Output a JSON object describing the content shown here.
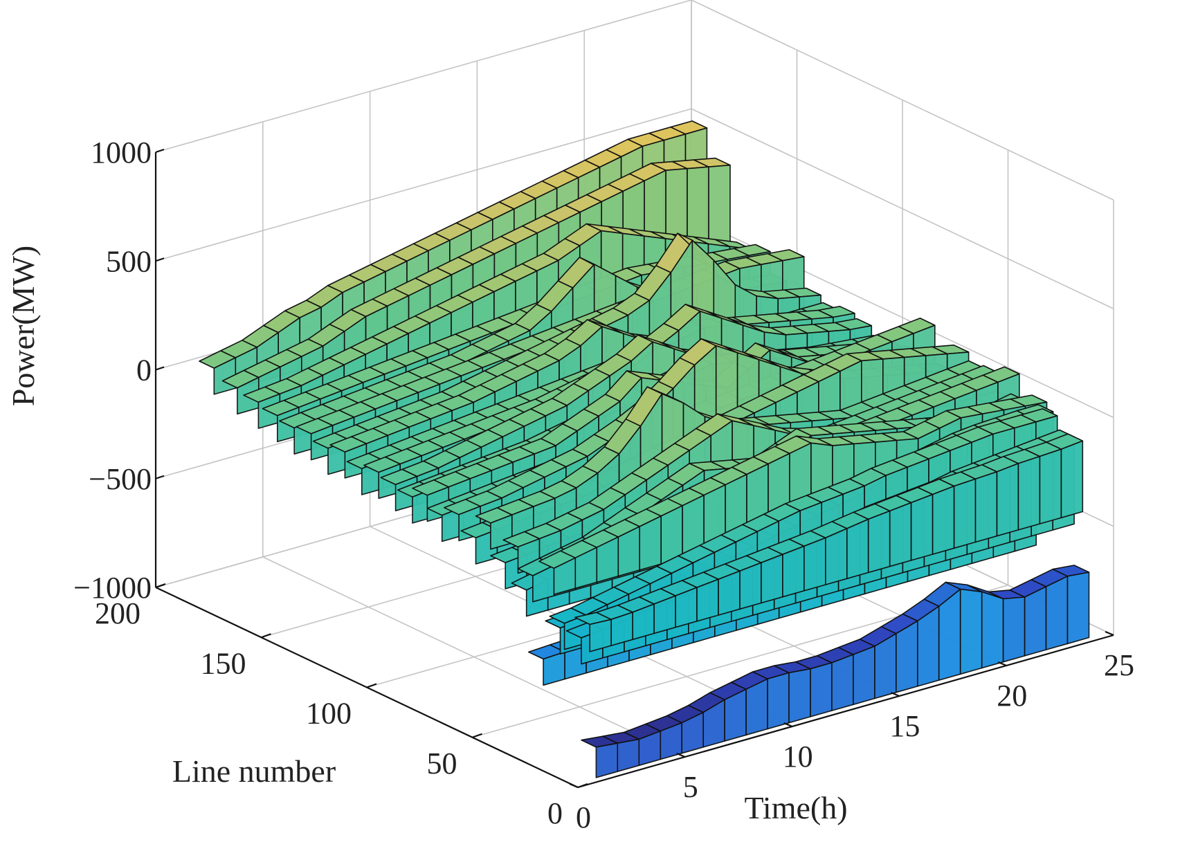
{
  "chart_data": {
    "type": "surface3d",
    "title": "",
    "xlabel": "Time(h)",
    "ylabel": "Line number",
    "zlabel": "Power(MW)",
    "x_ticks": [
      "0",
      "5",
      "10",
      "15",
      "20",
      "25"
    ],
    "y_ticks": [
      "0",
      "50",
      "100",
      "150",
      "200"
    ],
    "z_ticks": [
      "−1000",
      "−500",
      "0",
      "500",
      "1000"
    ],
    "xlim": [
      0,
      25
    ],
    "ylim": [
      0,
      200
    ],
    "zlim": [
      -1000,
      1000
    ],
    "grid": true,
    "colormap": [
      "#2b2c86",
      "#2f48c4",
      "#1f8fe3",
      "#16b6c8",
      "#3ec2a6",
      "#6cc78a",
      "#9cc774",
      "#c9c46b",
      "#e2c45a"
    ],
    "time_hours": [
      1,
      2,
      3,
      4,
      5,
      6,
      7,
      8,
      9,
      10,
      11,
      12,
      13,
      14,
      15,
      16,
      17,
      18,
      19,
      20,
      21,
      22,
      23,
      24
    ],
    "lines": [
      {
        "line": 5,
        "power_mw": [
          -850,
          -860,
          -870,
          -860,
          -850,
          -830,
          -800,
          -780,
          -760,
          -760,
          -770,
          -770,
          -760,
          -750,
          -720,
          -690,
          -650,
          -600,
          -640,
          -700,
          -720,
          -700,
          -680,
          -690
        ]
      },
      {
        "line": 8,
        "power_mw": [
          -300,
          -305,
          -300,
          -290,
          -280,
          -270,
          -260,
          -250,
          -240,
          -230,
          -220,
          -210,
          -195,
          -180,
          -170,
          -160,
          -150,
          -140,
          -135,
          -130,
          -120,
          -115,
          -110,
          -100
        ]
      },
      {
        "line": 12,
        "power_mw": [
          -380,
          -370,
          -360,
          -340,
          -330,
          -320,
          -300,
          -290,
          -280,
          -270,
          -260,
          -250,
          -240,
          -220,
          -200,
          -190,
          -180,
          -170,
          -150,
          -140,
          -130,
          -120,
          -110,
          -100
        ]
      },
      {
        "line": 20,
        "power_mw": [
          -350,
          -340,
          -320,
          -300,
          -280,
          -260,
          -240,
          -220,
          -200,
          -180,
          -160,
          -140,
          -130,
          -120,
          -110,
          -90,
          -80,
          -70,
          -60,
          -50,
          -40,
          -40,
          -40,
          -40
        ]
      },
      {
        "line": 22,
        "power_mw": [
          -380,
          -375,
          -370,
          -360,
          -350,
          -340,
          -320,
          -300,
          -280,
          -260,
          -240,
          -220,
          -200,
          -180,
          -160,
          -130,
          -110,
          -90,
          -70,
          -50,
          -40,
          -35,
          -30,
          -30
        ]
      },
      {
        "line": 25,
        "power_mw": [
          -120,
          -100,
          -80,
          -60,
          -40,
          -20,
          0,
          20,
          40,
          60,
          80,
          100,
          120,
          80,
          60,
          40,
          20,
          0,
          20,
          40,
          30,
          20,
          10,
          0
        ]
      },
      {
        "line": 30,
        "power_mw": [
          -560,
          -555,
          -550,
          -540,
          -520,
          -500,
          -480,
          -460,
          -440,
          -420,
          -400,
          -380,
          -360,
          -340,
          -320,
          -300,
          -280,
          -260,
          -240,
          -220,
          -200,
          -180,
          -160,
          -140
        ]
      },
      {
        "line": 35,
        "power_mw": [
          -200,
          -180,
          -160,
          -140,
          -100,
          -60,
          -20,
          20,
          60,
          40,
          20,
          0,
          40,
          80,
          60,
          40,
          20,
          0,
          -20,
          -40,
          -60,
          -80,
          -60,
          -40
        ]
      },
      {
        "line": 38,
        "power_mw": [
          -280,
          -260,
          -240,
          -220,
          -200,
          -180,
          -160,
          -140,
          -120,
          -100,
          -80,
          -60,
          -40,
          -30,
          -20,
          -10,
          0,
          10,
          20,
          30,
          40,
          50,
          60,
          70
        ]
      },
      {
        "line": 42,
        "power_mw": [
          -100,
          -90,
          -80,
          -60,
          -40,
          0,
          40,
          80,
          120,
          160,
          200,
          150,
          100,
          50,
          20,
          0,
          -20,
          -40,
          -60,
          -60,
          -60,
          -60,
          -60,
          -60
        ]
      },
      {
        "line": 48,
        "power_mw": [
          -200,
          -190,
          -180,
          -170,
          -160,
          -150,
          -140,
          -130,
          -120,
          -110,
          -100,
          -90,
          -80,
          -70,
          -60,
          -50,
          -40,
          -30,
          -20,
          -10,
          0,
          10,
          20,
          30
        ]
      },
      {
        "line": 55,
        "power_mw": [
          -50,
          -40,
          -30,
          -20,
          0,
          40,
          100,
          200,
          320,
          250,
          160,
          100,
          60,
          40,
          20,
          0,
          -20,
          -40,
          -30,
          -20,
          -10,
          0,
          10,
          20
        ]
      },
      {
        "line": 62,
        "power_mw": [
          -150,
          -140,
          -130,
          -120,
          -110,
          -100,
          -80,
          -60,
          -40,
          -20,
          0,
          20,
          40,
          60,
          80,
          100,
          120,
          140,
          160,
          140,
          120,
          100,
          80,
          60
        ]
      },
      {
        "line": 70,
        "power_mw": [
          -80,
          -70,
          -60,
          -40,
          -20,
          0,
          20,
          60,
          100,
          150,
          220,
          300,
          360,
          300,
          240,
          180,
          120,
          80,
          40,
          20,
          0,
          -20,
          -40,
          -60
        ]
      },
      {
        "line": 78,
        "power_mw": [
          -120,
          -110,
          -100,
          -90,
          -80,
          -70,
          -60,
          -50,
          -40,
          -30,
          -20,
          -10,
          0,
          10,
          20,
          30,
          40,
          50,
          60,
          70,
          80,
          90,
          100,
          110
        ]
      },
      {
        "line": 85,
        "power_mw": [
          -60,
          -50,
          -40,
          -30,
          -20,
          -10,
          0,
          40,
          80,
          120,
          200,
          160,
          120,
          80,
          40,
          100,
          160,
          100,
          40,
          20,
          0,
          -20,
          -40,
          -50
        ]
      },
      {
        "line": 92,
        "power_mw": [
          -100,
          -90,
          -80,
          -70,
          -60,
          -50,
          -40,
          -20,
          0,
          20,
          40,
          60,
          80,
          100,
          120,
          100,
          80,
          60,
          40,
          20,
          0,
          -20,
          -40,
          -60
        ]
      },
      {
        "line": 100,
        "power_mw": [
          -80,
          -70,
          -60,
          -40,
          -20,
          0,
          20,
          40,
          60,
          100,
          140,
          180,
          240,
          180,
          120,
          80,
          40,
          20,
          0,
          -20,
          -40,
          -50,
          -60,
          -70
        ]
      },
      {
        "line": 108,
        "power_mw": [
          -60,
          -50,
          -40,
          -30,
          -20,
          -10,
          0,
          10,
          20,
          40,
          60,
          80,
          100,
          150,
          200,
          260,
          200,
          140,
          80,
          40,
          20,
          0,
          -20,
          -30
        ]
      },
      {
        "line": 116,
        "power_mw": [
          -80,
          -70,
          -60,
          -50,
          -40,
          -30,
          -20,
          -10,
          0,
          10,
          20,
          30,
          40,
          60,
          80,
          100,
          120,
          100,
          80,
          60,
          40,
          20,
          0,
          -10
        ]
      },
      {
        "line": 124,
        "power_mw": [
          -40,
          -30,
          -20,
          -10,
          0,
          10,
          20,
          40,
          60,
          80,
          100,
          140,
          200,
          140,
          80,
          40,
          20,
          0,
          -10,
          -20,
          -30,
          -30,
          -30,
          -30
        ]
      },
      {
        "line": 132,
        "power_mw": [
          -60,
          -50,
          -40,
          -30,
          -20,
          -10,
          0,
          20,
          40,
          60,
          80,
          100,
          120,
          140,
          160,
          200,
          300,
          420,
          300,
          160,
          80,
          40,
          20,
          0
        ]
      },
      {
        "line": 140,
        "power_mw": [
          -30,
          -20,
          -10,
          0,
          10,
          20,
          30,
          40,
          50,
          60,
          70,
          80,
          90,
          100,
          110,
          120,
          130,
          140,
          150,
          160,
          170,
          160,
          150,
          140
        ]
      },
      {
        "line": 148,
        "power_mw": [
          -40,
          -30,
          -20,
          -10,
          0,
          10,
          20,
          30,
          40,
          60,
          80,
          100,
          160,
          240,
          320,
          240,
          160,
          100,
          60,
          40,
          20,
          10,
          0,
          -10
        ]
      },
      {
        "line": 156,
        "power_mw": [
          -20,
          -10,
          0,
          10,
          20,
          30,
          40,
          50,
          60,
          70,
          80,
          90,
          100,
          110,
          120,
          130,
          140,
          150,
          140,
          130,
          120,
          110,
          100,
          90
        ]
      },
      {
        "line": 165,
        "power_mw": [
          0,
          10,
          20,
          40,
          60,
          80,
          100,
          120,
          140,
          160,
          180,
          200,
          220,
          240,
          260,
          300,
          340,
          300,
          260,
          220,
          180,
          140,
          100,
          60
        ]
      },
      {
        "line": 175,
        "power_mw": [
          20,
          40,
          60,
          80,
          100,
          140,
          180,
          200,
          220,
          240,
          260,
          280,
          300,
          320,
          340,
          360,
          380,
          400,
          420,
          440,
          460,
          440,
          420,
          400
        ]
      },
      {
        "line": 186,
        "power_mw": [
          60,
          80,
          100,
          140,
          180,
          200,
          240,
          260,
          280,
          300,
          320,
          340,
          360,
          380,
          400,
          420,
          440,
          460,
          480,
          500,
          520,
          520,
          520,
          520
        ]
      }
    ]
  }
}
